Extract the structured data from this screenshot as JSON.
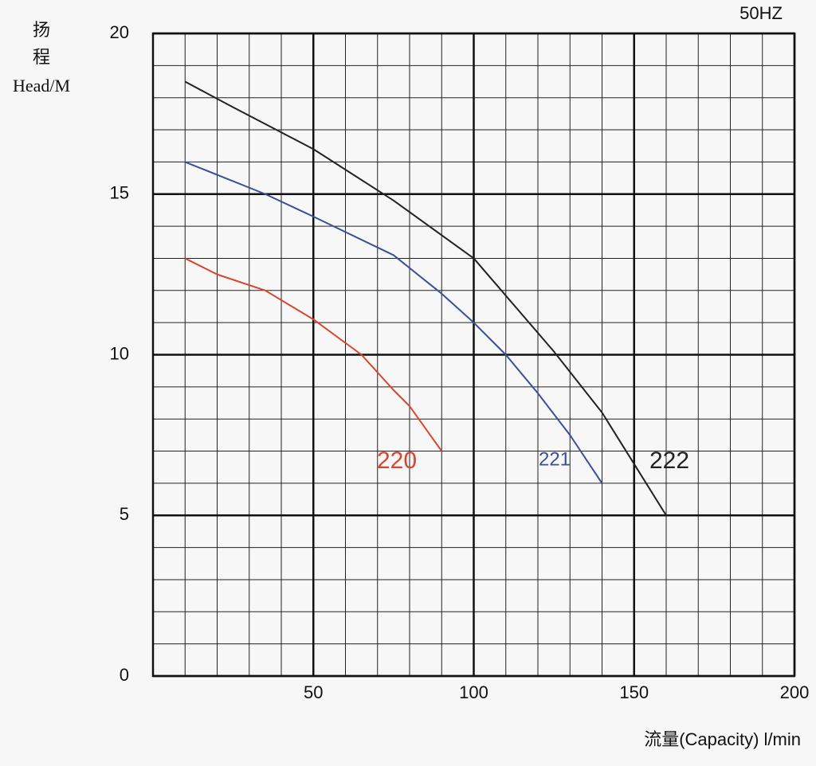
{
  "chart_data": {
    "type": "line",
    "annotation": "50HZ",
    "ylabel_lines": [
      "扬",
      "程",
      "Head/M"
    ],
    "xlabel": "流量(Capacity)  l/min",
    "xlim": [
      0,
      200
    ],
    "xticks": [
      50,
      100,
      150,
      200
    ],
    "ylim": [
      0,
      20
    ],
    "yticks": [
      0,
      5,
      10,
      15,
      20
    ],
    "grid": true,
    "series": [
      {
        "name": "220",
        "color": "#d9452f",
        "x": [
          10,
          20,
          35,
          50,
          65,
          75,
          80,
          90
        ],
        "values": [
          13,
          12.5,
          12,
          11.1,
          10,
          8.9,
          8.4,
          7
        ]
      },
      {
        "name": "221",
        "color": "#3a4f9a",
        "x": [
          10,
          35,
          50,
          75,
          90,
          100,
          110,
          120,
          130,
          140
        ],
        "values": [
          16,
          15,
          14.3,
          13.1,
          11.9,
          11,
          10,
          8.8,
          7.5,
          6
        ]
      },
      {
        "name": "222",
        "color": "#222222",
        "x": [
          10,
          25,
          50,
          75,
          100,
          125,
          140,
          150,
          160
        ],
        "values": [
          18.5,
          17.7,
          16.4,
          14.8,
          13,
          10.1,
          8.2,
          6.6,
          5
        ]
      }
    ]
  }
}
